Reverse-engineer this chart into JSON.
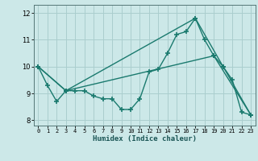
{
  "title": "",
  "xlabel": "Humidex (Indice chaleur)",
  "ylabel": "",
  "bg_color": "#cce8e8",
  "grid_color": "#aacece",
  "line_color": "#1a7a6e",
  "marker": "+",
  "markersize": 4,
  "markeredgewidth": 1.2,
  "linewidth": 1.0,
  "xlim": [
    -0.5,
    23.5
  ],
  "ylim": [
    7.8,
    12.3
  ],
  "yticks": [
    8,
    9,
    10,
    11,
    12
  ],
  "xticks": [
    0,
    1,
    2,
    3,
    4,
    5,
    6,
    7,
    8,
    9,
    10,
    11,
    12,
    13,
    14,
    15,
    16,
    17,
    18,
    19,
    20,
    21,
    22,
    23
  ],
  "series1_x": [
    0,
    1,
    2,
    3,
    4,
    5,
    6,
    7,
    8,
    9,
    10,
    11,
    12,
    13,
    14,
    15,
    16,
    17,
    18,
    19,
    20,
    21,
    22,
    23
  ],
  "series1_y": [
    10.0,
    9.3,
    8.7,
    9.1,
    9.1,
    9.1,
    8.9,
    8.8,
    8.8,
    8.4,
    8.4,
    8.8,
    9.8,
    9.9,
    10.5,
    11.2,
    11.3,
    11.8,
    11.0,
    10.4,
    10.0,
    9.5,
    8.3,
    8.2
  ],
  "series2_x": [
    0,
    3,
    17,
    20,
    23
  ],
  "series2_y": [
    10.0,
    9.1,
    11.8,
    10.0,
    8.2
  ],
  "series3_x": [
    0,
    3,
    19,
    23
  ],
  "series3_y": [
    10.0,
    9.1,
    10.4,
    8.2
  ]
}
